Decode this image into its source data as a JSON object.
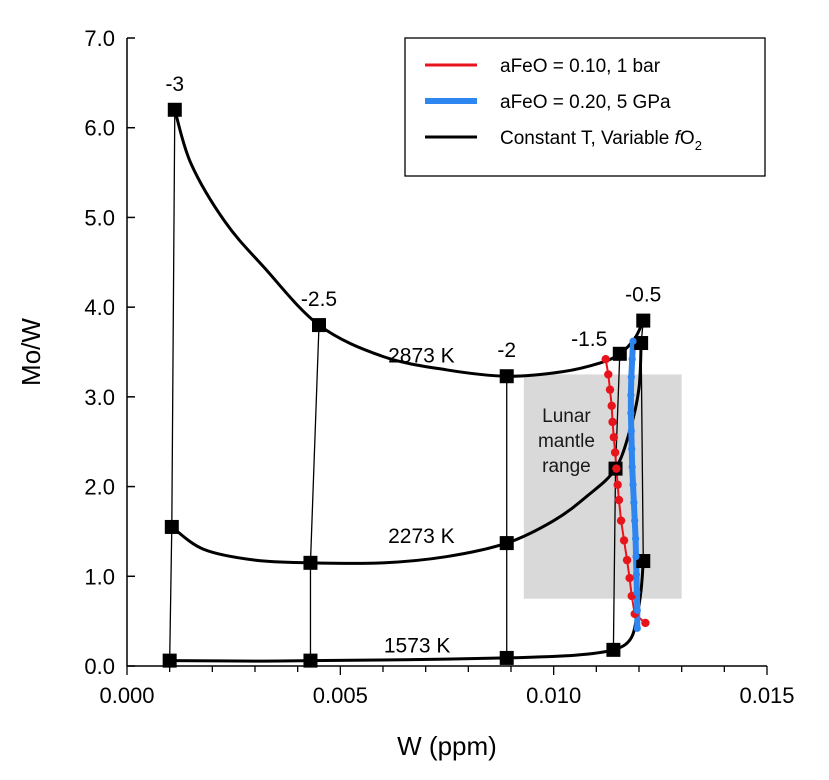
{
  "chart_data": {
    "type": "line",
    "xlabel": "W (ppm)",
    "ylabel": "Mo/W",
    "xlim": [
      0.0,
      0.015
    ],
    "ylim": [
      0.0,
      7.0
    ],
    "x_ticks": [
      "0.000",
      "0.005",
      "0.010",
      "0.015"
    ],
    "x_tick_values": [
      0.0,
      0.005,
      0.01,
      0.015
    ],
    "y_ticks": [
      "0.0",
      "1.0",
      "2.0",
      "3.0",
      "4.0",
      "5.0",
      "6.0",
      "7.0"
    ],
    "y_tick_values": [
      0,
      1,
      2,
      3,
      4,
      5,
      6,
      7
    ],
    "grid": false,
    "legend_position": "top-right",
    "legend": [
      {
        "label": "aFeO = 0.10, 1 bar",
        "color": "#e8141c"
      },
      {
        "label": "aFeO = 0.20, 5 GPa",
        "color": "#2e86f0"
      },
      {
        "label_prefix": "Constant T, Variable ",
        "label_italic": "f",
        "label_main": "O",
        "label_sub": "2",
        "color": "#000000"
      }
    ],
    "region": {
      "label_lines": [
        "Lunar",
        "mantle",
        "range"
      ],
      "x": [
        0.0093,
        0.013
      ],
      "y": [
        0.75,
        3.25
      ],
      "color": "#d9d9d9"
    },
    "series": [
      {
        "name": "2873 K",
        "color": "#000000",
        "style": "thick",
        "points": [
          [
            0.00112,
            6.2
          ],
          [
            0.0045,
            3.8
          ],
          [
            0.0089,
            3.23
          ],
          [
            0.01155,
            3.48
          ],
          [
            0.0121,
            3.85
          ]
        ],
        "curve": [
          [
            0.00112,
            6.2
          ],
          [
            0.0015,
            5.6
          ],
          [
            0.0023,
            4.95
          ],
          [
            0.0032,
            4.45
          ],
          [
            0.0045,
            3.8
          ],
          [
            0.006,
            3.45
          ],
          [
            0.0075,
            3.3
          ],
          [
            0.0089,
            3.23
          ],
          [
            0.0102,
            3.28
          ],
          [
            0.0111,
            3.38
          ],
          [
            0.01155,
            3.48
          ],
          [
            0.0119,
            3.65
          ],
          [
            0.0121,
            3.85
          ]
        ],
        "label": "2873 K"
      },
      {
        "name": "2273 K",
        "color": "#000000",
        "style": "thick",
        "points": [
          [
            0.00105,
            1.55
          ],
          [
            0.0043,
            1.15
          ],
          [
            0.0089,
            1.37
          ],
          [
            0.01145,
            2.2
          ],
          [
            0.01205,
            3.6
          ]
        ],
        "curve": [
          [
            0.00105,
            1.55
          ],
          [
            0.0018,
            1.3
          ],
          [
            0.003,
            1.18
          ],
          [
            0.0043,
            1.15
          ],
          [
            0.006,
            1.15
          ],
          [
            0.0075,
            1.22
          ],
          [
            0.0089,
            1.37
          ],
          [
            0.01,
            1.62
          ],
          [
            0.0108,
            1.9
          ],
          [
            0.01145,
            2.2
          ],
          [
            0.0118,
            2.65
          ],
          [
            0.012,
            3.1
          ],
          [
            0.01205,
            3.6
          ]
        ],
        "label": "2273 K"
      },
      {
        "name": "1573 K",
        "color": "#000000",
        "style": "thick",
        "points": [
          [
            0.001,
            0.06
          ],
          [
            0.0043,
            0.06
          ],
          [
            0.0089,
            0.09
          ],
          [
            0.0114,
            0.18
          ],
          [
            0.0121,
            1.17
          ]
        ],
        "curve": [
          [
            0.001,
            0.06
          ],
          [
            0.003,
            0.055
          ],
          [
            0.0043,
            0.06
          ],
          [
            0.0065,
            0.07
          ],
          [
            0.0089,
            0.09
          ],
          [
            0.0105,
            0.12
          ],
          [
            0.0114,
            0.18
          ],
          [
            0.0118,
            0.3
          ],
          [
            0.01195,
            0.55
          ],
          [
            0.01205,
            0.85
          ],
          [
            0.0121,
            1.17
          ]
        ],
        "label": "1573 K"
      },
      {
        "name": "-3",
        "color": "#000000",
        "style": "thin",
        "curve": [
          [
            0.00112,
            6.2
          ],
          [
            0.00105,
            1.55
          ],
          [
            0.001,
            0.06
          ]
        ],
        "label": "-3"
      },
      {
        "name": "-2.5",
        "color": "#000000",
        "style": "thin",
        "curve": [
          [
            0.0045,
            3.8
          ],
          [
            0.0043,
            1.15
          ],
          [
            0.0043,
            0.06
          ]
        ],
        "label": "-2.5"
      },
      {
        "name": "-2",
        "color": "#000000",
        "style": "thin",
        "curve": [
          [
            0.0089,
            3.23
          ],
          [
            0.0089,
            1.37
          ],
          [
            0.0089,
            0.09
          ]
        ],
        "label": "-2"
      },
      {
        "name": "-1.5",
        "color": "#000000",
        "style": "thin",
        "curve": [
          [
            0.01155,
            3.48
          ],
          [
            0.01145,
            2.2
          ],
          [
            0.0114,
            0.18
          ]
        ],
        "label": "-1.5"
      },
      {
        "name": "-0.5",
        "color": "#000000",
        "style": "thin",
        "curve": [
          [
            0.0121,
            3.85
          ],
          [
            0.01205,
            3.6
          ],
          [
            0.0121,
            1.17
          ]
        ],
        "label": "-0.5"
      },
      {
        "name": "aFeO = 0.10, 1 bar",
        "color": "#e8141c",
        "style": "red",
        "points": [
          [
            0.01122,
            3.42
          ],
          [
            0.01128,
            3.25
          ],
          [
            0.01132,
            3.08
          ],
          [
            0.01136,
            2.9
          ],
          [
            0.01138,
            2.72
          ],
          [
            0.01141,
            2.55
          ],
          [
            0.01144,
            2.38
          ],
          [
            0.01147,
            2.2
          ],
          [
            0.0115,
            2.02
          ],
          [
            0.01153,
            1.85
          ],
          [
            0.01158,
            1.62
          ],
          [
            0.01165,
            1.4
          ],
          [
            0.01172,
            1.18
          ],
          [
            0.01178,
            0.98
          ],
          [
            0.01183,
            0.78
          ],
          [
            0.0119,
            0.58
          ],
          [
            0.01215,
            0.48
          ]
        ],
        "curve": [
          [
            0.01122,
            3.42
          ],
          [
            0.01128,
            3.25
          ],
          [
            0.01132,
            3.08
          ],
          [
            0.01136,
            2.9
          ],
          [
            0.01138,
            2.72
          ],
          [
            0.01141,
            2.55
          ],
          [
            0.01144,
            2.38
          ],
          [
            0.01147,
            2.2
          ],
          [
            0.0115,
            2.02
          ],
          [
            0.01153,
            1.85
          ],
          [
            0.01158,
            1.62
          ],
          [
            0.01165,
            1.4
          ],
          [
            0.01172,
            1.18
          ],
          [
            0.01178,
            0.98
          ],
          [
            0.01183,
            0.78
          ],
          [
            0.0119,
            0.58
          ],
          [
            0.01215,
            0.48
          ]
        ]
      },
      {
        "name": "aFeO = 0.20, 5 GPa",
        "color": "#2e86f0",
        "style": "blue",
        "points": [
          [
            0.01186,
            3.62
          ],
          [
            0.01184,
            3.42
          ],
          [
            0.01182,
            3.22
          ],
          [
            0.01181,
            3.02
          ],
          [
            0.01181,
            2.82
          ],
          [
            0.01182,
            2.62
          ],
          [
            0.01183,
            2.42
          ],
          [
            0.01184,
            2.22
          ],
          [
            0.01186,
            2.02
          ],
          [
            0.01188,
            1.82
          ],
          [
            0.0119,
            1.62
          ],
          [
            0.01192,
            1.42
          ],
          [
            0.01193,
            1.22
          ],
          [
            0.01194,
            1.02
          ],
          [
            0.01195,
            0.82
          ],
          [
            0.01196,
            0.62
          ],
          [
            0.01196,
            0.42
          ]
        ],
        "curve": [
          [
            0.01186,
            3.62
          ],
          [
            0.01184,
            3.42
          ],
          [
            0.01182,
            3.22
          ],
          [
            0.01181,
            3.02
          ],
          [
            0.01181,
            2.82
          ],
          [
            0.01182,
            2.62
          ],
          [
            0.01183,
            2.42
          ],
          [
            0.01184,
            2.22
          ],
          [
            0.01186,
            2.02
          ],
          [
            0.01188,
            1.82
          ],
          [
            0.0119,
            1.62
          ],
          [
            0.01192,
            1.42
          ],
          [
            0.01193,
            1.22
          ],
          [
            0.01194,
            1.02
          ],
          [
            0.01195,
            0.82
          ],
          [
            0.01196,
            0.62
          ],
          [
            0.01196,
            0.42
          ]
        ]
      }
    ],
    "annotations": [
      {
        "text": "-3",
        "x": 0.00112,
        "y": 6.2,
        "anchor": "above"
      },
      {
        "text": "-2.5",
        "x": 0.0045,
        "y": 3.8,
        "anchor": "above"
      },
      {
        "text": "-2",
        "x": 0.0089,
        "y": 3.23,
        "anchor": "above"
      },
      {
        "text": "-1.5",
        "x": 0.01135,
        "y": 3.48,
        "anchor": "left"
      },
      {
        "text": "-0.5",
        "x": 0.0121,
        "y": 3.85,
        "anchor": "above"
      },
      {
        "text": "2873 K",
        "x": 0.0069,
        "y": 3.46,
        "anchor": "center"
      },
      {
        "text": "2273 K",
        "x": 0.0069,
        "y": 1.45,
        "anchor": "center"
      },
      {
        "text": "1573 K",
        "x": 0.0068,
        "y": 0.23,
        "anchor": "center"
      }
    ]
  }
}
